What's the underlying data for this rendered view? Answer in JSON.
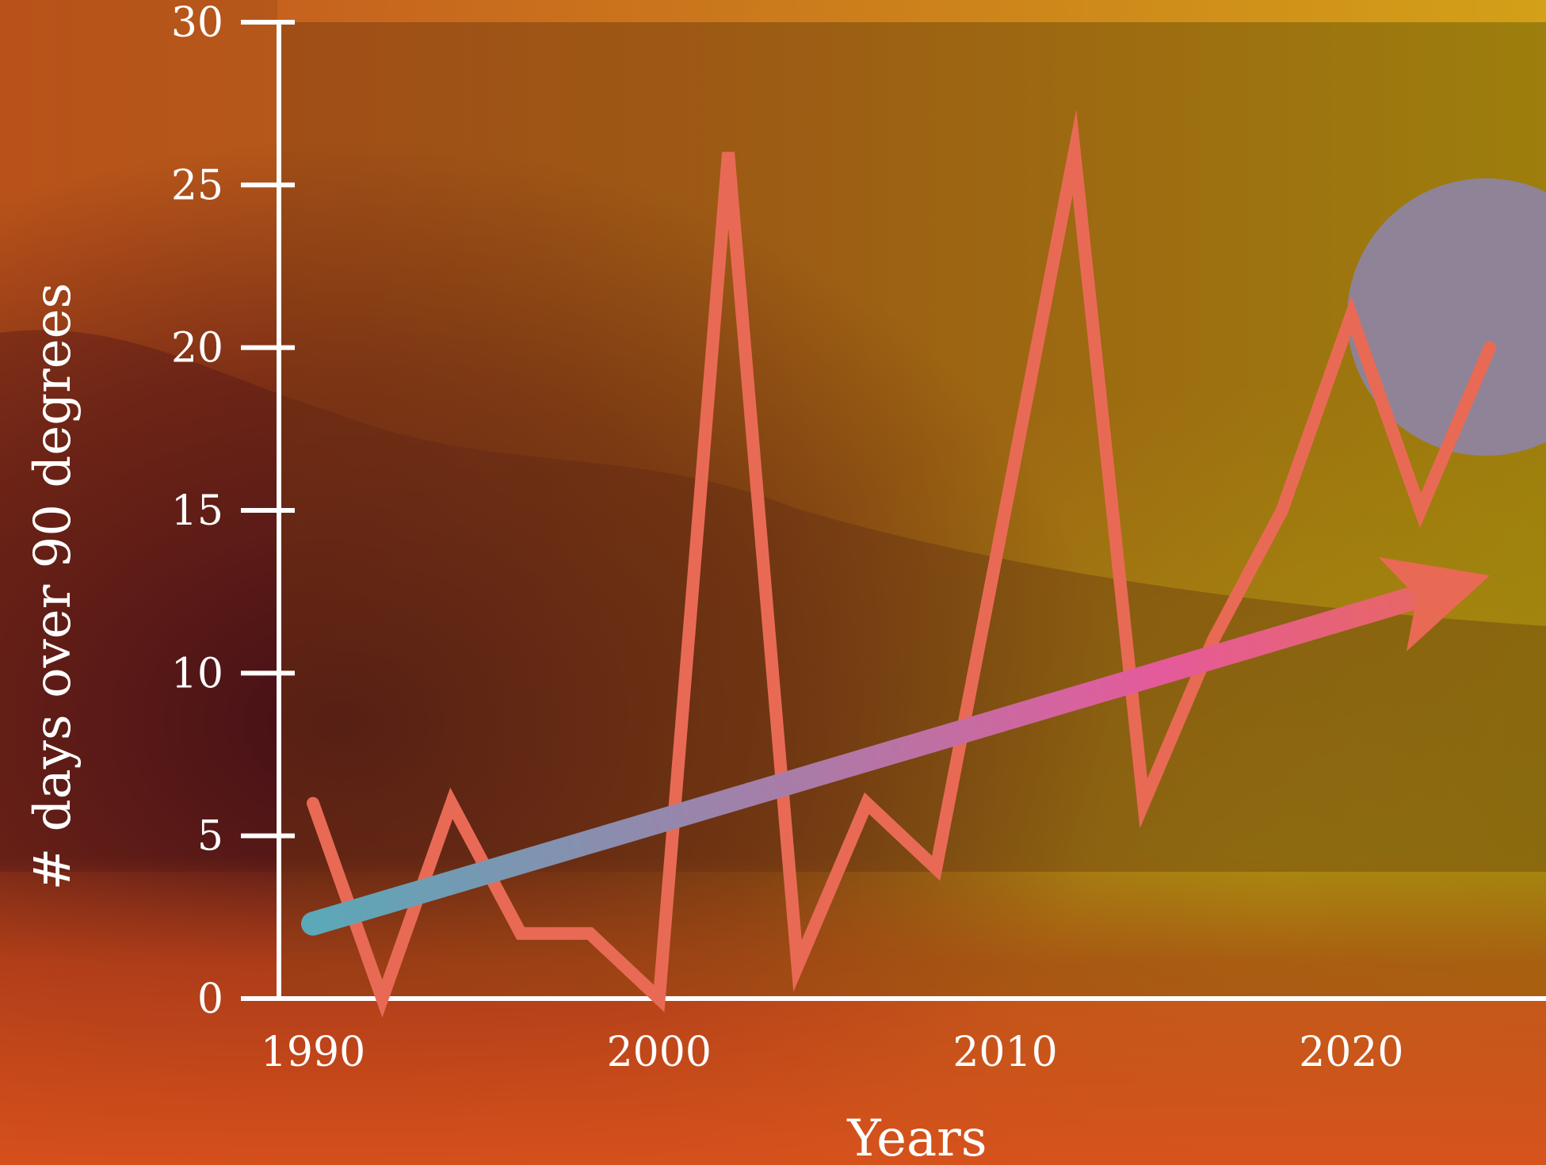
{
  "chart_data": {
    "type": "line",
    "title": "",
    "xlabel": "Years",
    "ylabel": "# days over 90 degrees",
    "xlim": [
      1990,
      2024
    ],
    "ylim": [
      0,
      30
    ],
    "x_ticks": [
      1990,
      2000,
      2010,
      2020
    ],
    "y_ticks": [
      0,
      5,
      10,
      15,
      20,
      25,
      30
    ],
    "grid": false,
    "legend": "none",
    "series": [
      {
        "x": [
          1990,
          1992,
          1994,
          1996,
          1998,
          2000,
          2002,
          2004,
          2006,
          2008,
          2010,
          2012,
          2014,
          2016,
          2018,
          2020,
          2022,
          2024
        ],
        "values": [
          6,
          0,
          6,
          2,
          2,
          0,
          26,
          1,
          6,
          4,
          15,
          26,
          6,
          11,
          15,
          21,
          15,
          20
        ],
        "color": "#e86a55"
      }
    ],
    "trend": {
      "start": [
        1990,
        2.3
      ],
      "end": [
        2024,
        13
      ],
      "colors": [
        "#5ba8b8",
        "#e55a9b",
        "#e86a55"
      ]
    }
  }
}
